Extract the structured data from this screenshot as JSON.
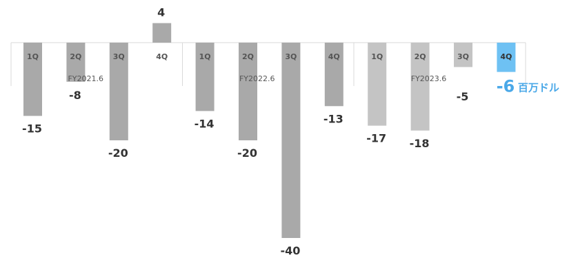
{
  "chart_data": {
    "type": "bar",
    "groups": [
      {
        "label": "FY2021.6",
        "quarters": [
          "1Q",
          "2Q",
          "3Q",
          "4Q"
        ],
        "values": [
          -15,
          -8,
          -20,
          4
        ]
      },
      {
        "label": "FY2022.6",
        "quarters": [
          "1Q",
          "2Q",
          "3Q",
          "4Q"
        ],
        "values": [
          -14,
          -20,
          -40,
          -13
        ]
      },
      {
        "label": "FY2023.6",
        "quarters": [
          "1Q",
          "2Q",
          "3Q",
          "4Q"
        ],
        "values": [
          -17,
          -18,
          -5,
          -6
        ]
      }
    ],
    "unit": "百万ドル",
    "highlight": {
      "group": 2,
      "index": 3
    },
    "colors": {
      "FY2021.6": "#a9a9a9",
      "FY2022.6": "#a9a9a9",
      "FY2023.6": "#c4c4c4",
      "highlight": "#6ec1f3",
      "axis": "#d9d9d9",
      "label": "#333333",
      "highlight_label": "#4aa8e8"
    }
  }
}
